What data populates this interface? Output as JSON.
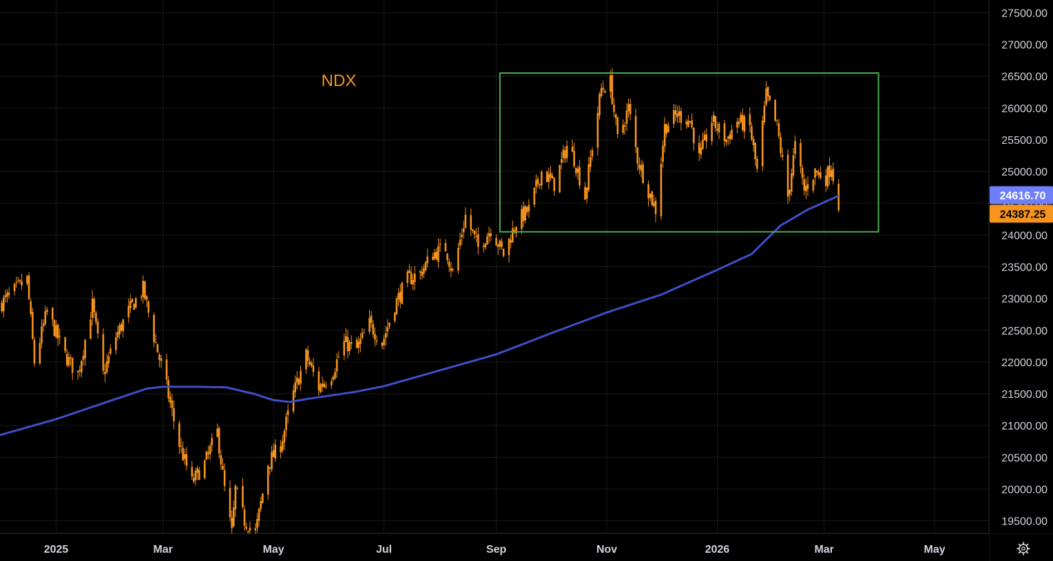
{
  "chart_data": {
    "type": "candlestick",
    "symbol": "NDX",
    "colors": {
      "background": "#000000",
      "candle": "#f7941d",
      "moving_average": "#3f4fc9",
      "range_box": "#4caf50",
      "ma_tag": "#6f7ff7",
      "last_price_tag": "#f7941d",
      "grid": "#1a1a1a",
      "axis_text": "#d1d4dc"
    },
    "y_axis": {
      "min": 19500,
      "max": 27500,
      "ticks": [
        "19500.00",
        "20000.00",
        "20500.00",
        "21000.00",
        "21500.00",
        "22000.00",
        "22500.00",
        "23000.00",
        "23500.00",
        "24000.00",
        "24500.00",
        "25000.00",
        "25500.00",
        "26000.00",
        "26500.00",
        "27000.00",
        "27500.00"
      ]
    },
    "x_axis": {
      "range": [
        "2024-12-01",
        "2026-05-31"
      ],
      "ticks": [
        {
          "label": "2025",
          "date": "2025-01-01",
          "bold": true
        },
        {
          "label": "Mar",
          "date": "2025-03-01"
        },
        {
          "label": "May",
          "date": "2025-05-01"
        },
        {
          "label": "Jul",
          "date": "2025-07-01"
        },
        {
          "label": "Sep",
          "date": "2025-09-01"
        },
        {
          "label": "Nov",
          "date": "2025-11-01"
        },
        {
          "label": "2026",
          "date": "2026-01-01",
          "bold": true
        },
        {
          "label": "Mar",
          "date": "2026-03-01"
        },
        {
          "label": "May",
          "date": "2026-05-01"
        }
      ]
    },
    "price_path": [
      [
        "2024-12-01",
        22900
      ],
      [
        "2024-12-10",
        23150
      ],
      [
        "2024-12-16",
        23300
      ],
      [
        "2024-12-20",
        22000
      ],
      [
        "2024-12-27",
        22800
      ],
      [
        "2025-01-06",
        22100
      ],
      [
        "2025-01-13",
        21800
      ],
      [
        "2025-01-21",
        22900
      ],
      [
        "2025-01-27",
        21800
      ],
      [
        "2025-02-03",
        22400
      ],
      [
        "2025-02-10",
        22800
      ],
      [
        "2025-02-18",
        23150
      ],
      [
        "2025-02-24",
        22400
      ],
      [
        "2025-03-03",
        21600
      ],
      [
        "2025-03-10",
        20700
      ],
      [
        "2025-03-17",
        20100
      ],
      [
        "2025-03-24",
        20400
      ],
      [
        "2025-03-31",
        20900
      ],
      [
        "2025-04-04",
        20000
      ],
      [
        "2025-04-08",
        19300
      ],
      [
        "2025-04-10",
        20000
      ],
      [
        "2025-04-15",
        19500
      ],
      [
        "2025-04-21",
        19300
      ],
      [
        "2025-04-28",
        20400
      ],
      [
        "2025-05-05",
        20700
      ],
      [
        "2025-05-12",
        21500
      ],
      [
        "2025-05-19",
        22100
      ],
      [
        "2025-05-26",
        21600
      ],
      [
        "2025-06-02",
        21800
      ],
      [
        "2025-06-09",
        22300
      ],
      [
        "2025-06-16",
        22200
      ],
      [
        "2025-06-23",
        22600
      ],
      [
        "2025-06-30",
        22300
      ],
      [
        "2025-07-07",
        22900
      ],
      [
        "2025-07-14",
        23300
      ],
      [
        "2025-07-21",
        23400
      ],
      [
        "2025-07-28",
        23700
      ],
      [
        "2025-08-04",
        23800
      ],
      [
        "2025-08-08",
        23400
      ],
      [
        "2025-08-15",
        24300
      ],
      [
        "2025-08-22",
        23800
      ],
      [
        "2025-08-29",
        24100
      ],
      [
        "2025-09-05",
        23700
      ],
      [
        "2025-09-12",
        24200
      ],
      [
        "2025-09-19",
        24400
      ],
      [
        "2025-09-26",
        25000
      ],
      [
        "2025-10-03",
        24800
      ],
      [
        "2025-10-10",
        25400
      ],
      [
        "2025-10-14",
        25200
      ],
      [
        "2025-10-20",
        24600
      ],
      [
        "2025-10-24",
        25400
      ],
      [
        "2025-10-29",
        26300
      ],
      [
        "2025-11-03",
        26400
      ],
      [
        "2025-11-07",
        25500
      ],
      [
        "2025-11-13",
        26000
      ],
      [
        "2025-11-18",
        25200
      ],
      [
        "2025-11-24",
        24700
      ],
      [
        "2025-11-28",
        24400
      ],
      [
        "2025-12-03",
        25700
      ],
      [
        "2025-12-10",
        25900
      ],
      [
        "2025-12-17",
        25800
      ],
      [
        "2025-12-22",
        25200
      ],
      [
        "2025-12-29",
        25800
      ],
      [
        "2026-01-06",
        25500
      ],
      [
        "2026-01-12",
        25800
      ],
      [
        "2026-01-19",
        25700
      ],
      [
        "2026-01-23",
        25000
      ],
      [
        "2026-01-28",
        26200
      ],
      [
        "2026-02-03",
        25700
      ],
      [
        "2026-02-09",
        24600
      ],
      [
        "2026-02-13",
        25400
      ],
      [
        "2026-02-18",
        24700
      ],
      [
        "2026-02-24",
        25000
      ],
      [
        "2026-03-02",
        24900
      ],
      [
        "2026-03-05",
        25100
      ],
      [
        "2026-03-09",
        24387.25
      ]
    ],
    "moving_average": [
      [
        "2024-12-01",
        20850
      ],
      [
        "2025-01-01",
        21100
      ],
      [
        "2025-02-01",
        21400
      ],
      [
        "2025-02-20",
        21580
      ],
      [
        "2025-03-01",
        21610
      ],
      [
        "2025-03-20",
        21610
      ],
      [
        "2025-04-05",
        21600
      ],
      [
        "2025-04-20",
        21500
      ],
      [
        "2025-05-01",
        21400
      ],
      [
        "2025-05-10",
        21370
      ],
      [
        "2025-05-20",
        21420
      ],
      [
        "2025-06-01",
        21470
      ],
      [
        "2025-06-15",
        21530
      ],
      [
        "2025-07-01",
        21620
      ],
      [
        "2025-08-01",
        21870
      ],
      [
        "2025-09-01",
        22120
      ],
      [
        "2025-10-01",
        22450
      ],
      [
        "2025-11-01",
        22780
      ],
      [
        "2025-12-01",
        23060
      ],
      [
        "2026-01-01",
        23450
      ],
      [
        "2026-01-20",
        23700
      ],
      [
        "2026-02-05",
        24150
      ],
      [
        "2026-02-20",
        24400
      ],
      [
        "2026-03-09",
        24616.7
      ]
    ],
    "range_box": {
      "start": "2025-09-03",
      "end": "2026-03-31",
      "top": 26550,
      "bottom": 24050
    },
    "price_tags": {
      "moving_average": "24616.70",
      "last_price": "24387.25"
    },
    "settings_icon": "gear-icon"
  }
}
